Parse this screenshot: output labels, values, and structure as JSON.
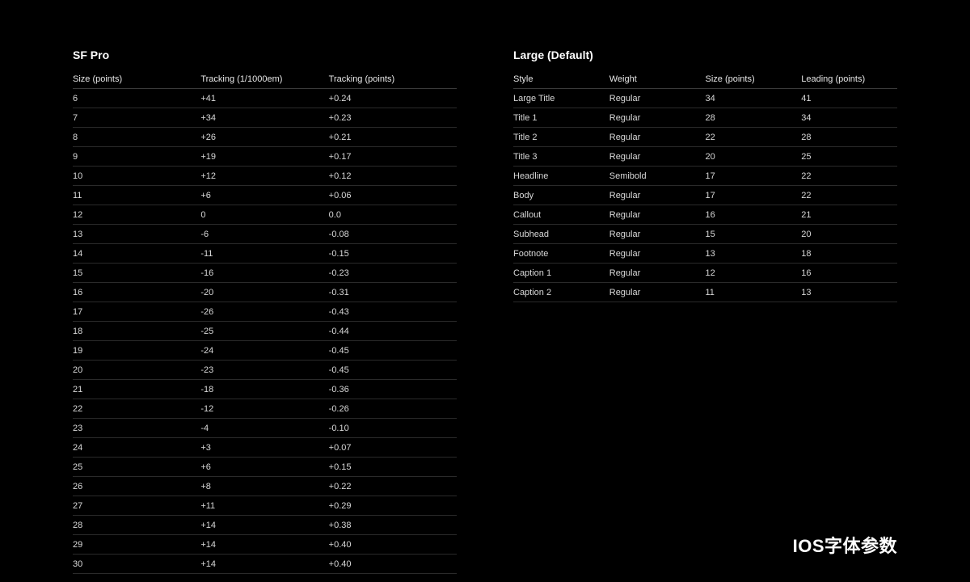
{
  "caption": "IOS字体参数",
  "left": {
    "title": "SF Pro",
    "columns": [
      "Size (points)",
      "Tracking (1/1000em)",
      "Tracking (points)"
    ],
    "rows": [
      [
        "6",
        "+41",
        "+0.24"
      ],
      [
        "7",
        "+34",
        "+0.23"
      ],
      [
        "8",
        "+26",
        "+0.21"
      ],
      [
        "9",
        "+19",
        "+0.17"
      ],
      [
        "10",
        "+12",
        "+0.12"
      ],
      [
        "11",
        "+6",
        "+0.06"
      ],
      [
        "12",
        "0",
        "0.0"
      ],
      [
        "13",
        "-6",
        "-0.08"
      ],
      [
        "14",
        "-11",
        "-0.15"
      ],
      [
        "15",
        "-16",
        "-0.23"
      ],
      [
        "16",
        "-20",
        "-0.31"
      ],
      [
        "17",
        "-26",
        "-0.43"
      ],
      [
        "18",
        "-25",
        "-0.44"
      ],
      [
        "19",
        "-24",
        "-0.45"
      ],
      [
        "20",
        "-23",
        "-0.45"
      ],
      [
        "21",
        "-18",
        "-0.36"
      ],
      [
        "22",
        "-12",
        "-0.26"
      ],
      [
        "23",
        "-4",
        "-0.10"
      ],
      [
        "24",
        "+3",
        "+0.07"
      ],
      [
        "25",
        "+6",
        "+0.15"
      ],
      [
        "26",
        "+8",
        "+0.22"
      ],
      [
        "27",
        "+11",
        "+0.29"
      ],
      [
        "28",
        "+14",
        "+0.38"
      ],
      [
        "29",
        "+14",
        "+0.40"
      ],
      [
        "30",
        "+14",
        "+0.40"
      ]
    ]
  },
  "right": {
    "title": "Large (Default)",
    "columns": [
      "Style",
      "Weight",
      "Size (points)",
      "Leading (points)"
    ],
    "rows": [
      [
        "Large Title",
        "Regular",
        "34",
        "41"
      ],
      [
        "Title 1",
        "Regular",
        "28",
        "34"
      ],
      [
        "Title 2",
        "Regular",
        "22",
        "28"
      ],
      [
        "Title 3",
        "Regular",
        "20",
        "25"
      ],
      [
        "Headline",
        "Semibold",
        "17",
        "22"
      ],
      [
        "Body",
        "Regular",
        "17",
        "22"
      ],
      [
        "Callout",
        "Regular",
        "16",
        "21"
      ],
      [
        "Subhead",
        "Regular",
        "15",
        "20"
      ],
      [
        "Footnote",
        "Regular",
        "13",
        "18"
      ],
      [
        "Caption 1",
        "Regular",
        "12",
        "16"
      ],
      [
        "Caption 2",
        "Regular",
        "11",
        "13"
      ]
    ]
  }
}
